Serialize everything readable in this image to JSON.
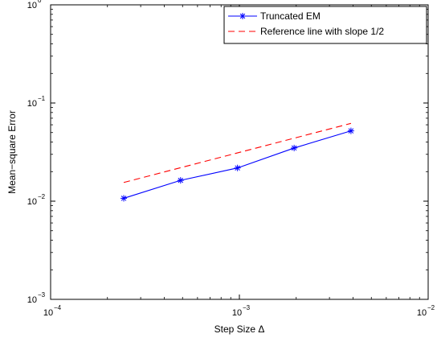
{
  "chart_data": {
    "type": "line",
    "xlabel": "Step Size Δ",
    "ylabel": "Mean−square Error",
    "x_scale": "log",
    "y_scale": "log",
    "xlim": [
      0.0001,
      0.01
    ],
    "ylim": [
      0.001,
      1
    ],
    "x_ticks": [
      {
        "value": 0.0001,
        "base": "10",
        "exp": "−4"
      },
      {
        "value": 0.001,
        "base": "10",
        "exp": "−3"
      },
      {
        "value": 0.01,
        "base": "10",
        "exp": "−2"
      }
    ],
    "y_ticks": [
      {
        "value": 0.001,
        "base": "10",
        "exp": "−3"
      },
      {
        "value": 0.01,
        "base": "10",
        "exp": "−2"
      },
      {
        "value": 0.1,
        "base": "10",
        "exp": "−1"
      },
      {
        "value": 1,
        "base": "10",
        "exp": "0"
      }
    ],
    "grid": false,
    "legend_position": "top-right",
    "series": [
      {
        "name": "Truncated EM",
        "style": "solid",
        "marker": "asterisk",
        "color": "#0000ff",
        "x": [
          0.000244,
          0.000488,
          0.000977,
          0.00195,
          0.0039
        ],
        "y": [
          0.0107,
          0.0163,
          0.0218,
          0.0348,
          0.052
        ]
      },
      {
        "name": "Reference line with slope 1/2",
        "style": "dashed",
        "marker": "none",
        "color": "#ff0000",
        "x": [
          0.000244,
          0.0039
        ],
        "y": [
          0.0155,
          0.062
        ]
      }
    ]
  }
}
